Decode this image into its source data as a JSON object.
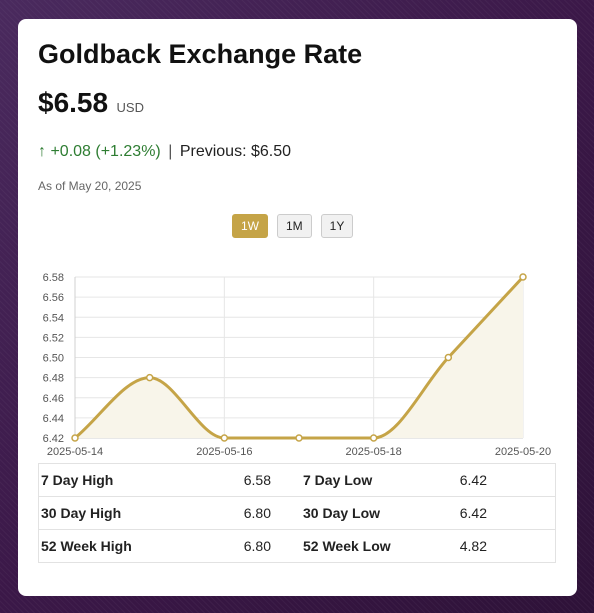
{
  "title": "Goldback Exchange Rate",
  "price": "$6.58",
  "currency": "USD",
  "change": {
    "arrow": "↑",
    "text": "+0.08 (+1.23%)",
    "separator": "|",
    "previous_label": "Previous:",
    "previous_value": "$6.50"
  },
  "as_of": "As of May 20, 2025",
  "ranges": {
    "items": [
      {
        "label": "1W",
        "active": true
      },
      {
        "label": "1M",
        "active": false
      },
      {
        "label": "1Y",
        "active": false
      }
    ]
  },
  "colors": {
    "accent": "#c5a447",
    "fill": "#f8f5ea",
    "up": "#2e7d32"
  },
  "chart_data": {
    "type": "line",
    "x": [
      "2025-05-14",
      "2025-05-15",
      "2025-05-16",
      "2025-05-17",
      "2025-05-18",
      "2025-05-19",
      "2025-05-20"
    ],
    "values": [
      6.42,
      6.48,
      6.42,
      6.42,
      6.42,
      6.5,
      6.58
    ],
    "xtick_labels": [
      "2025-05-14",
      "2025-05-16",
      "2025-05-18",
      "2025-05-20"
    ],
    "ytick_labels": [
      "6.58",
      "6.56",
      "6.54",
      "6.52",
      "6.50",
      "6.48",
      "6.46",
      "6.44",
      "6.42"
    ],
    "ylim": [
      6.42,
      6.58
    ],
    "grid": true,
    "area_fill": true,
    "title": "",
    "xlabel": "",
    "ylabel": ""
  },
  "stats": {
    "rows": [
      {
        "label_a": "7 Day High",
        "value_a": "6.58",
        "label_b": "7 Day Low",
        "value_b": "6.42"
      },
      {
        "label_a": "30 Day High",
        "value_a": "6.80",
        "label_b": "30 Day Low",
        "value_b": "6.42"
      },
      {
        "label_a": "52 Week High",
        "value_a": "6.80",
        "label_b": "52 Week Low",
        "value_b": "4.82"
      }
    ]
  }
}
